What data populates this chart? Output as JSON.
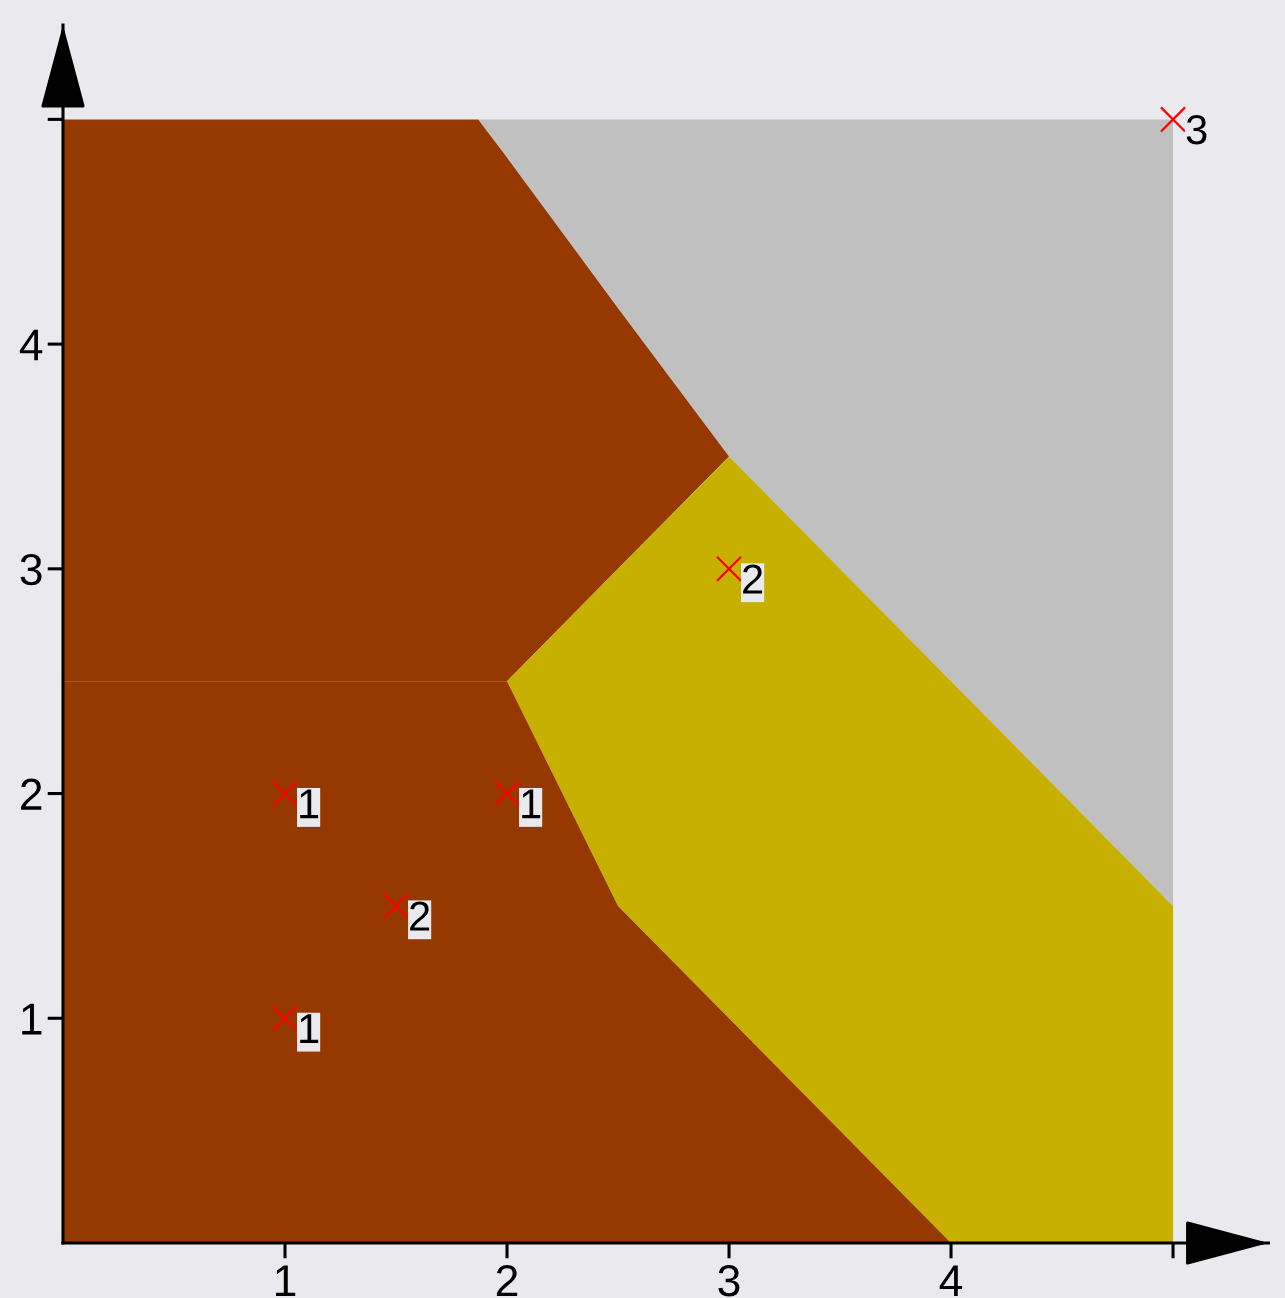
{
  "chart_data": {
    "type": "area",
    "stacked": true,
    "xlim": [
      0,
      5.43
    ],
    "ylim": [
      0,
      5.42
    ],
    "xticks": [
      1,
      2,
      3,
      4,
      {
        "value": 5,
        "label": null
      }
    ],
    "yticks": [
      1,
      2,
      3,
      4,
      {
        "value": 5,
        "label": null
      }
    ],
    "x": [
      0,
      1.87,
      2,
      2.5,
      3,
      4,
      5
    ],
    "series": [
      {
        "values": [
          2.5,
          2.5,
          2.5,
          1.5,
          1,
          0,
          null
        ],
        "color": "#963900"
      },
      {
        "values": [
          null,
          null,
          0,
          1.5,
          2.5,
          2.5,
          1.5
        ],
        "color": "#c7b000"
      },
      {
        "values": [
          2.5,
          2.5,
          2.33,
          1.16,
          0,
          null,
          null
        ],
        "color": "#963900"
      },
      {
        "values": [
          null,
          0,
          0.17,
          0.84,
          1.5,
          2.5,
          3.5
        ],
        "color": "#c0c0c0"
      },
      {
        "type": "scatter",
        "marker": "cross",
        "x": [
          1,
          1,
          1.5,
          2,
          3,
          5
        ],
        "values": [
          1,
          2,
          1.5,
          2,
          3,
          5
        ],
        "color": "#ff0000"
      }
    ],
    "annotations": [
      {
        "text": "1",
        "x": 1,
        "y": 1
      },
      {
        "text": "1",
        "x": 1,
        "y": 2
      },
      {
        "text": "2",
        "x": 1.5,
        "y": 1.5
      },
      {
        "text": "1",
        "x": 2,
        "y": 2
      },
      {
        "text": "2",
        "x": 3,
        "y": 3
      },
      {
        "text": "3",
        "x": 5,
        "y": 5
      }
    ]
  }
}
